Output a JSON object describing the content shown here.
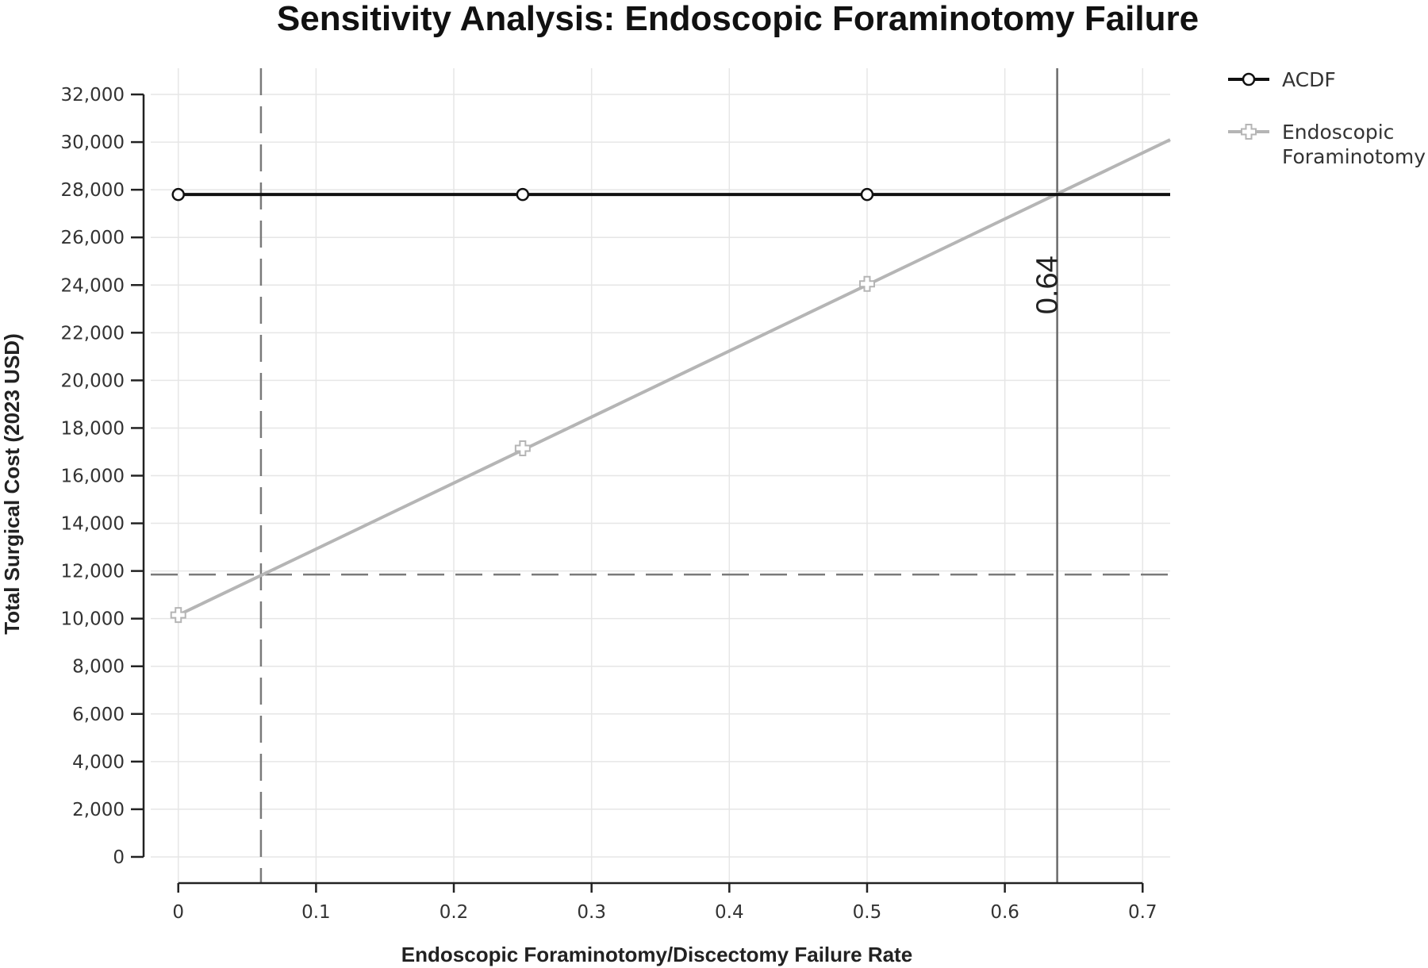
{
  "chart_data": {
    "type": "line",
    "title": "Sensitivity Analysis: Endoscopic Foraminotomy Failure",
    "xlabel": "Endoscopic Foraminotomy/Discectomy Failure Rate",
    "ylabel": "Total Surgical Cost (2023 USD)",
    "xlim": [
      -0.02,
      0.72
    ],
    "ylim": [
      -1100,
      33100
    ],
    "x_ticks": [
      0,
      0.1,
      0.2,
      0.3,
      0.4,
      0.5,
      0.6,
      0.7
    ],
    "x_tick_labels": [
      "0",
      "0.1",
      "0.2",
      "0.3",
      "0.4",
      "0.5",
      "0.6",
      "0.7"
    ],
    "y_ticks": [
      0,
      2000,
      4000,
      6000,
      8000,
      10000,
      12000,
      14000,
      16000,
      18000,
      20000,
      22000,
      24000,
      26000,
      28000,
      30000,
      32000
    ],
    "y_tick_labels": [
      "0",
      "2,000",
      "4,000",
      "6,000",
      "8,000",
      "10,000",
      "12,000",
      "14,000",
      "16,000",
      "18,000",
      "20,000",
      "22,000",
      "24,000",
      "26,000",
      "28,000",
      "30,000",
      "32,000"
    ],
    "grid": true,
    "legend_position": "top-right",
    "series": [
      {
        "name": "ACDF",
        "color": "#111111",
        "marker": "circle",
        "line": [
          [
            0,
            27800
          ],
          [
            0.72,
            27800
          ]
        ],
        "markers": [
          [
            0,
            27800
          ],
          [
            0.25,
            27800
          ],
          [
            0.5,
            27800
          ]
        ]
      },
      {
        "name": "Endoscopic Foraminotomy",
        "color": "#b5b5b5",
        "marker": "plus",
        "line": [
          [
            0,
            10150
          ],
          [
            0.72,
            30100
          ]
        ],
        "markers": [
          [
            0,
            10150
          ],
          [
            0.25,
            17150
          ],
          [
            0.5,
            24050
          ]
        ]
      }
    ],
    "reference_lines": [
      {
        "orientation": "vertical",
        "value": 0.06,
        "style": "dashed"
      },
      {
        "orientation": "horizontal",
        "value": 11850,
        "style": "dashed"
      },
      {
        "orientation": "vertical",
        "value": 0.638,
        "style": "solid"
      }
    ],
    "annotations": [
      {
        "text": "0.64",
        "x": 0.63,
        "y": 24000,
        "rotation": -90
      }
    ]
  }
}
